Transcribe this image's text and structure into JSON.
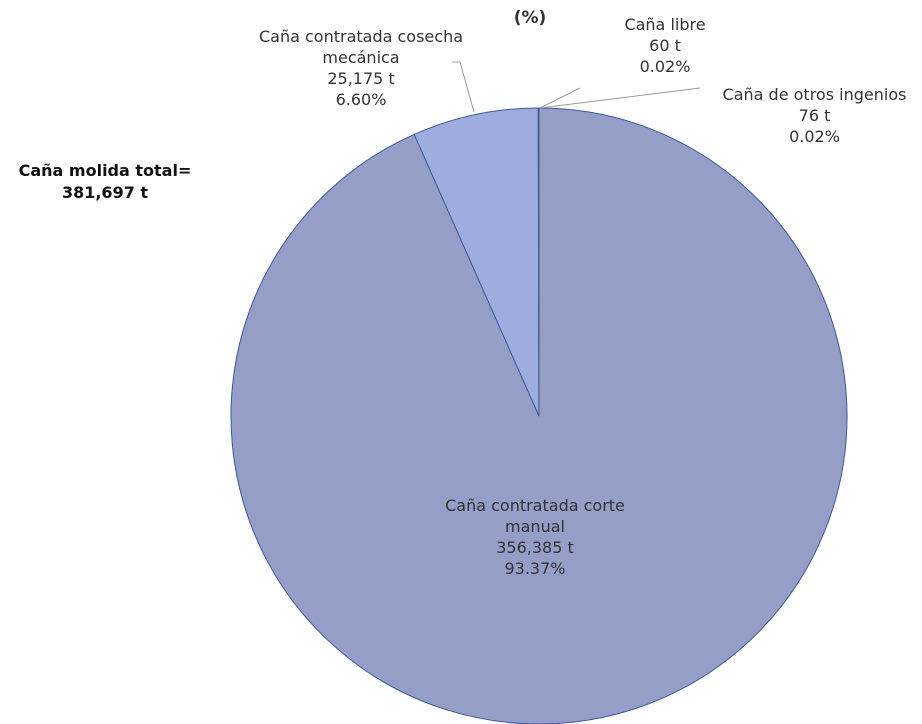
{
  "chart_data": {
    "type": "pie",
    "title": "(%)",
    "categories": [
      "Caña contratada corte manual",
      "Caña contratada cosecha mecánica",
      "Caña libre",
      "Caña de otros ingenios"
    ],
    "values": [
      93.37,
      6.6,
      0.02,
      0.02
    ],
    "value_labels": [
      "93.37%",
      "6.60%",
      "0.02%",
      "0.02%"
    ],
    "tonnes": [
      356385,
      25175,
      60,
      76
    ],
    "tonnes_labels": [
      "356,385 t",
      "25,175 t",
      "60 t",
      "76 t"
    ],
    "colors": [
      "#949ec6",
      "#9eaddd",
      "#9eaddd",
      "#9eaddd"
    ],
    "total_label": "Caña molida total=",
    "total": 381697,
    "total_value_label": "381,697 t"
  }
}
